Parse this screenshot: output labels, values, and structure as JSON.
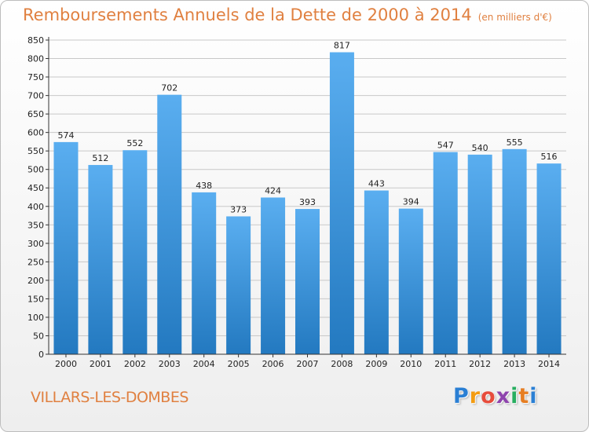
{
  "title": "Remboursements Annuels de la Dette de 2000 à 2014",
  "subtitle": "(en milliers d'€)",
  "commune": "VILLARS-LES-DOMBES",
  "logo": {
    "letters": [
      "P",
      "r",
      "o",
      "x",
      "i",
      "t",
      "i"
    ],
    "colors": [
      "#2a7fd4",
      "#f39c12",
      "#e74c3c",
      "#8e44ad",
      "#27ae60",
      "#e67e22",
      "#2a7fd4"
    ]
  },
  "colors": {
    "bar_top": "#5aaef0",
    "bar_bottom": "#2379c0",
    "title": "#e08040",
    "axis": "#333333",
    "grid": "#c8c8c8"
  },
  "chart_data": {
    "type": "bar",
    "categories": [
      "2000",
      "2001",
      "2002",
      "2003",
      "2004",
      "2005",
      "2006",
      "2007",
      "2008",
      "2009",
      "2010",
      "2011",
      "2012",
      "2013",
      "2014"
    ],
    "values": [
      574,
      512,
      552,
      702,
      438,
      373,
      424,
      393,
      817,
      443,
      394,
      547,
      540,
      555,
      516
    ],
    "ylim": [
      0,
      850
    ],
    "yticks": [
      0,
      50,
      100,
      150,
      200,
      250,
      300,
      350,
      400,
      450,
      500,
      550,
      600,
      650,
      700,
      750,
      800,
      850
    ],
    "grid": true,
    "data_labels": true
  }
}
